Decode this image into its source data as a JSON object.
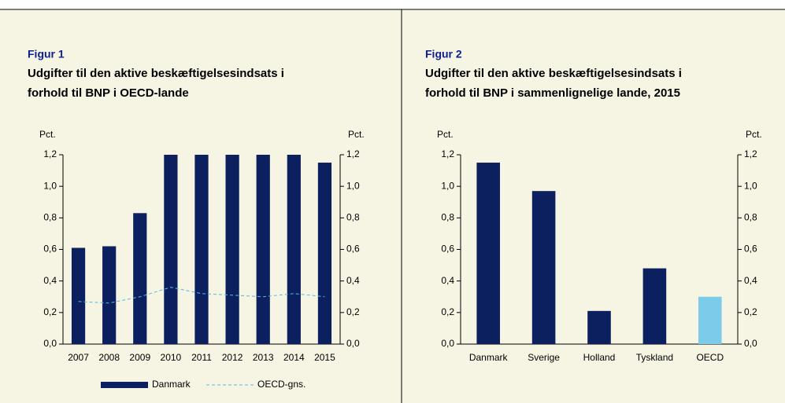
{
  "chart_data": [
    {
      "type": "bar",
      "label": "Figur 1",
      "title": [
        "Udgifter til den aktive beskæftigelsesindsats i",
        "forhold til BNP i OECD-lande"
      ],
      "categories": [
        "2007",
        "2008",
        "2009",
        "2010",
        "2011",
        "2012",
        "2013",
        "2014",
        "2015"
      ],
      "series": [
        {
          "name": "Danmark",
          "type": "bar",
          "color": "#0c1f5e",
          "values": [
            0.61,
            0.62,
            0.83,
            1.2,
            1.2,
            1.2,
            1.2,
            1.2,
            1.15
          ]
        },
        {
          "name": "OECD-gns.",
          "type": "line",
          "dashed": true,
          "color": "#5bb8e0",
          "values": [
            0.27,
            0.26,
            0.3,
            0.36,
            0.32,
            0.31,
            0.3,
            0.32,
            0.3
          ]
        }
      ],
      "ylabel": "Pct.",
      "y2label": "Pct.",
      "ylim": [
        0,
        1.2
      ],
      "yticks": [
        {
          "value": 0,
          "label": "0,0"
        },
        {
          "value": 0.2,
          "label": "0,2"
        },
        {
          "value": 0.4,
          "label": "0,4"
        },
        {
          "value": 0.6,
          "label": "0,6"
        },
        {
          "value": 0.8,
          "label": "0,8"
        },
        {
          "value": 1,
          "label": "1,0"
        },
        {
          "value": 1.2,
          "label": "1,2"
        }
      ],
      "y2lim": [
        0,
        1.2
      ],
      "y2ticks": [
        {
          "value": 0,
          "label": "0,0"
        },
        {
          "value": 0.2,
          "label": "0,2"
        },
        {
          "value": 0.4,
          "label": "0,4"
        },
        {
          "value": 0.6,
          "label": "0,6"
        },
        {
          "value": 0.8,
          "label": "0,8"
        },
        {
          "value": 1,
          "label": "1,0"
        },
        {
          "value": 1.2,
          "label": "1,2"
        }
      ],
      "legend": "bottom"
    },
    {
      "type": "bar",
      "label": "Figur 2",
      "title": [
        "Udgifter til den aktive beskæftigelsesindsats i",
        "forhold til BNP i sammenlignelige lande, 2015"
      ],
      "categories": [
        "Danmark",
        "Sverige",
        "Holland",
        "Tyskland",
        "OECD"
      ],
      "values": [
        1.15,
        0.97,
        0.21,
        0.48,
        0.3
      ],
      "colors": [
        "#0c1f5e",
        "#0c1f5e",
        "#0c1f5e",
        "#0c1f5e",
        "#7ccbea"
      ],
      "ylabel": "Pct.",
      "y2label": "Pct.",
      "ylim": [
        0,
        1.2
      ],
      "yticks": [
        {
          "value": 0,
          "label": "0,0"
        },
        {
          "value": 0.2,
          "label": "0,2"
        },
        {
          "value": 0.4,
          "label": "0,4"
        },
        {
          "value": 0.6,
          "label": "0,6"
        },
        {
          "value": 0.8,
          "label": "0,8"
        },
        {
          "value": 1,
          "label": "1,0"
        },
        {
          "value": 1.2,
          "label": "1,2"
        }
      ],
      "y2lim": [
        0,
        1.2
      ],
      "y2ticks": [
        {
          "value": 0,
          "label": "0,0"
        },
        {
          "value": 0.2,
          "label": "0,2"
        },
        {
          "value": 0.4,
          "label": "0,4"
        },
        {
          "value": 0.6,
          "label": "0,6"
        },
        {
          "value": 0.8,
          "label": "0,8"
        },
        {
          "value": 1,
          "label": "1,0"
        },
        {
          "value": 1.2,
          "label": "1,2"
        }
      ]
    }
  ]
}
